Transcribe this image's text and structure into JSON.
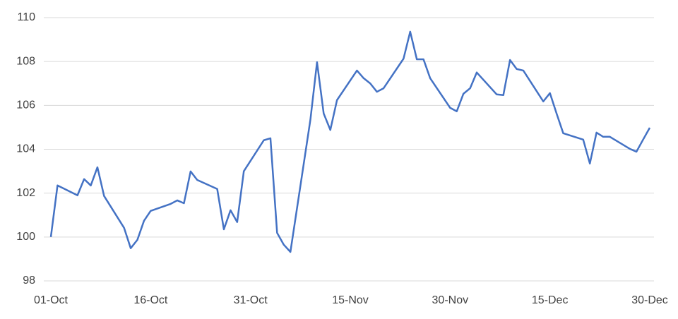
{
  "chart_data": {
    "type": "line",
    "x": [
      "01-Oct",
      "02-Oct",
      "05-Oct",
      "06-Oct",
      "07-Oct",
      "08-Oct",
      "09-Oct",
      "12-Oct",
      "13-Oct",
      "14-Oct",
      "15-Oct",
      "16-Oct",
      "19-Oct",
      "20-Oct",
      "21-Oct",
      "22-Oct",
      "23-Oct",
      "26-Oct",
      "27-Oct",
      "28-Oct",
      "29-Oct",
      "30-Oct",
      "02-Nov",
      "03-Nov",
      "04-Nov",
      "05-Nov",
      "06-Nov",
      "09-Nov",
      "10-Nov",
      "11-Nov",
      "12-Nov",
      "13-Nov",
      "16-Nov",
      "17-Nov",
      "18-Nov",
      "19-Nov",
      "20-Nov",
      "23-Nov",
      "24-Nov",
      "25-Nov",
      "26-Nov",
      "27-Nov",
      "30-Nov",
      "01-Dec",
      "02-Dec",
      "03-Dec",
      "04-Dec",
      "07-Dec",
      "08-Dec",
      "09-Dec",
      "10-Dec",
      "11-Dec",
      "14-Dec",
      "15-Dec",
      "16-Dec",
      "17-Dec",
      "20-Dec",
      "21-Dec",
      "22-Dec",
      "23-Dec",
      "24-Dec",
      "27-Dec",
      "28-Dec",
      "29-Dec",
      "30-Dec"
    ],
    "series": [
      {
        "color": "#4472c4",
        "values": [
          100.0,
          102.35,
          101.9,
          102.64,
          102.35,
          103.18,
          101.87,
          100.42,
          99.49,
          99.87,
          100.74,
          101.19,
          101.51,
          101.67,
          101.54,
          102.99,
          102.6,
          102.19,
          100.35,
          101.22,
          100.68,
          103.0,
          104.41,
          104.5,
          100.19,
          99.65,
          99.32,
          105.34,
          107.97,
          105.63,
          104.88,
          106.24,
          107.59,
          107.24,
          107.0,
          106.62,
          106.78,
          108.13,
          109.36,
          108.1,
          108.1,
          107.24,
          105.89,
          105.73,
          106.53,
          106.78,
          107.5,
          106.5,
          106.47,
          108.07,
          107.66,
          107.59,
          106.18,
          106.56,
          105.63,
          104.73,
          104.44,
          103.35,
          104.76,
          104.57,
          104.57,
          104.02,
          103.89,
          104.44,
          104.98
        ]
      }
    ],
    "xlim": [
      "01-Oct",
      "30-Dec"
    ],
    "xticks": [
      "01-Oct",
      "16-Oct",
      "31-Oct",
      "15-Nov",
      "30-Nov",
      "15-Dec",
      "30-Dec"
    ],
    "ylim": [
      98,
      110
    ],
    "yticks": [
      98,
      100,
      102,
      104,
      106,
      108,
      110
    ],
    "grid": true
  }
}
